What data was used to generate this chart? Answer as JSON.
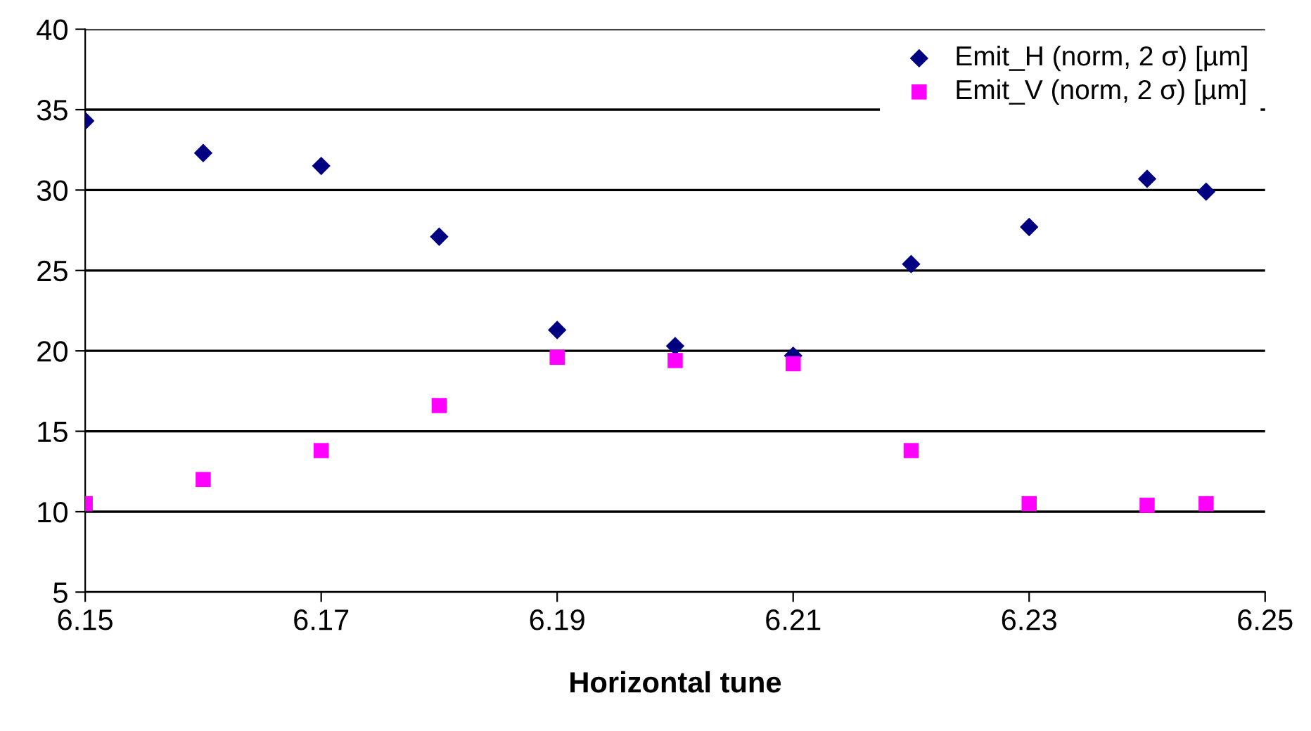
{
  "chart_data": {
    "type": "scatter",
    "xlabel": "Horizontal tune",
    "x": [
      6.15,
      6.16,
      6.17,
      6.18,
      6.19,
      6.2,
      6.21,
      6.22,
      6.23,
      6.24,
      6.245
    ],
    "series": [
      {
        "name": "Emit_H (norm, 2 σ) [µm]",
        "color": "#000080",
        "marker": "diamond",
        "values": [
          34.3,
          32.3,
          31.5,
          27.1,
          21.3,
          20.3,
          19.7,
          25.4,
          27.7,
          30.7,
          29.9
        ]
      },
      {
        "name": "Emit_V (norm, 2 σ) [µm]",
        "color": "#ff00ff",
        "marker": "square",
        "values": [
          10.5,
          12.0,
          13.8,
          16.6,
          19.6,
          19.4,
          19.2,
          13.8,
          10.5,
          10.4,
          10.5
        ]
      }
    ],
    "xlim": [
      6.15,
      6.25
    ],
    "xticks": [
      {
        "value": 6.15,
        "label": "6.15"
      },
      {
        "value": 6.17,
        "label": "6.17"
      },
      {
        "value": 6.19,
        "label": "6.19"
      },
      {
        "value": 6.21,
        "label": "6.21"
      },
      {
        "value": 6.23,
        "label": "6.23"
      },
      {
        "value": 6.25,
        "label": "6.25"
      }
    ],
    "ylim": [
      5,
      40
    ],
    "yticks": [
      5,
      10,
      15,
      20,
      25,
      30,
      35,
      40
    ],
    "grid": "y",
    "legend": "top right"
  }
}
